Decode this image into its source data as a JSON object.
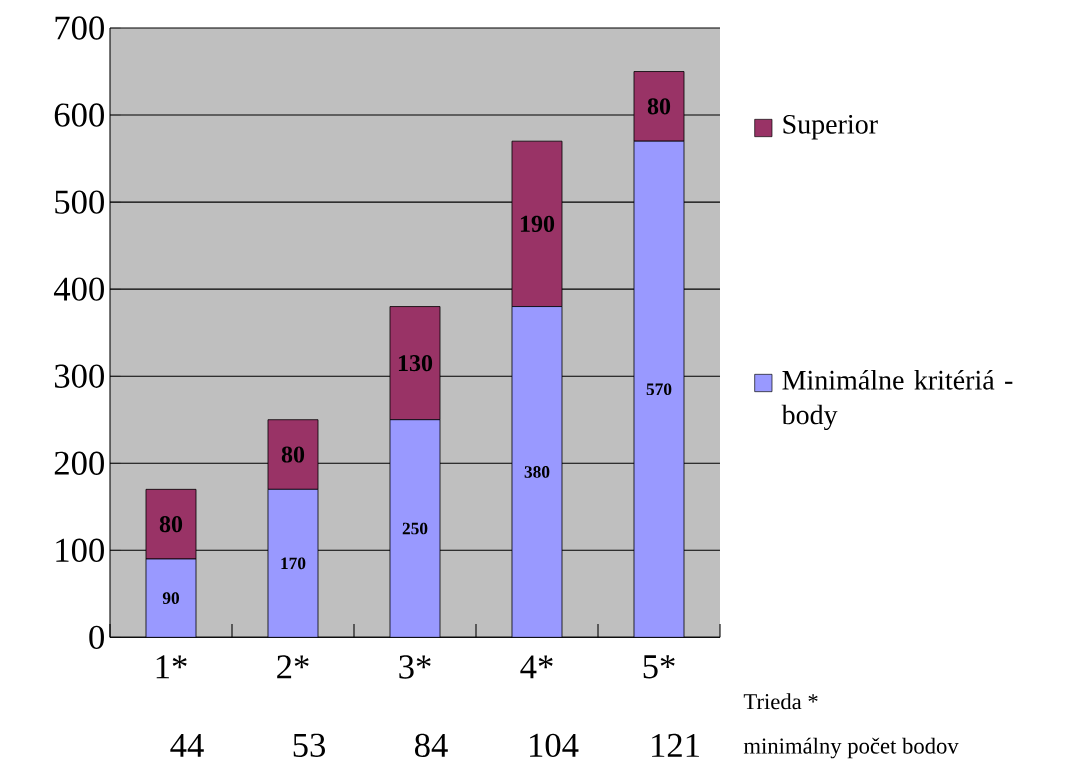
{
  "chart_data": {
    "type": "bar",
    "stacked": true,
    "categories": [
      "1*",
      "2*",
      "3*",
      "4*",
      "5*"
    ],
    "series": [
      {
        "name": "Minimálne kritériá - body",
        "color": "#9999ff",
        "values": [
          90,
          170,
          250,
          380,
          570
        ]
      },
      {
        "name": "Superior",
        "color": "#993366",
        "values": [
          80,
          80,
          130,
          190,
          80
        ]
      }
    ],
    "ylim": [
      0,
      700
    ],
    "yticks": [
      0,
      100,
      200,
      300,
      400,
      500,
      600,
      700
    ],
    "grid": "y",
    "legend": "right",
    "data_labels": true,
    "xlabel": "Trieda *",
    "annotations": [
      "44",
      "53",
      "84",
      "104",
      "121",
      "minimálny počet  bodov"
    ]
  }
}
